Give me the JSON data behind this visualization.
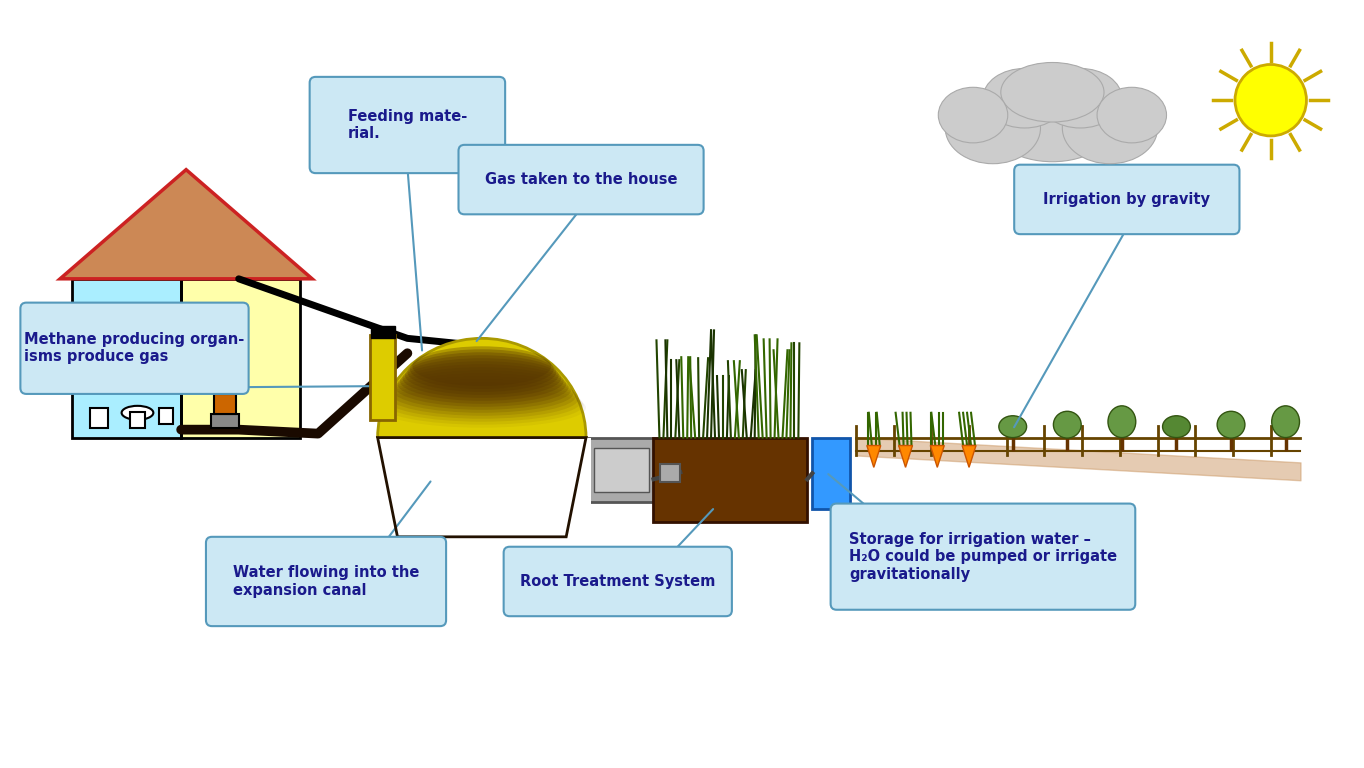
{
  "bg_color": "#ffffff",
  "callout_color": "#cce8f4",
  "callout_edge": "#5599bb",
  "text_color": "#1a1a8c",
  "house_roof_fill": "#cc8855",
  "house_roof_edge": "#cc2222",
  "house_left_fill": "#aaeeff",
  "house_right_fill": "#ffffaa",
  "digester_dome_fill": "#ddcc00",
  "digester_base_fill": "#884400",
  "digester_dome_edge": "#aa9900",
  "settler_fill": "#aaaaaa",
  "settler_edge": "#666666",
  "water_tank_fill": "#3399ff",
  "sun_fill": "#ffff00",
  "sun_edge": "#ccaa00",
  "cloud_fill": "#cccccc",
  "cloud_edge": "#aaaaaa",
  "labels": {
    "feeding": "Feeding mate-\nrial.",
    "gas": "Gas taken to the house",
    "methane": "Methane producing organ-\nisms produce gas",
    "water": "Water flowing into the\nexpansion canal",
    "root": "Root Treatment System",
    "storage": "Storage for irrigation water –\nH₂O could be pumped or irrigate\ngravitationally",
    "irrigation": "Irrigation by gravity"
  }
}
